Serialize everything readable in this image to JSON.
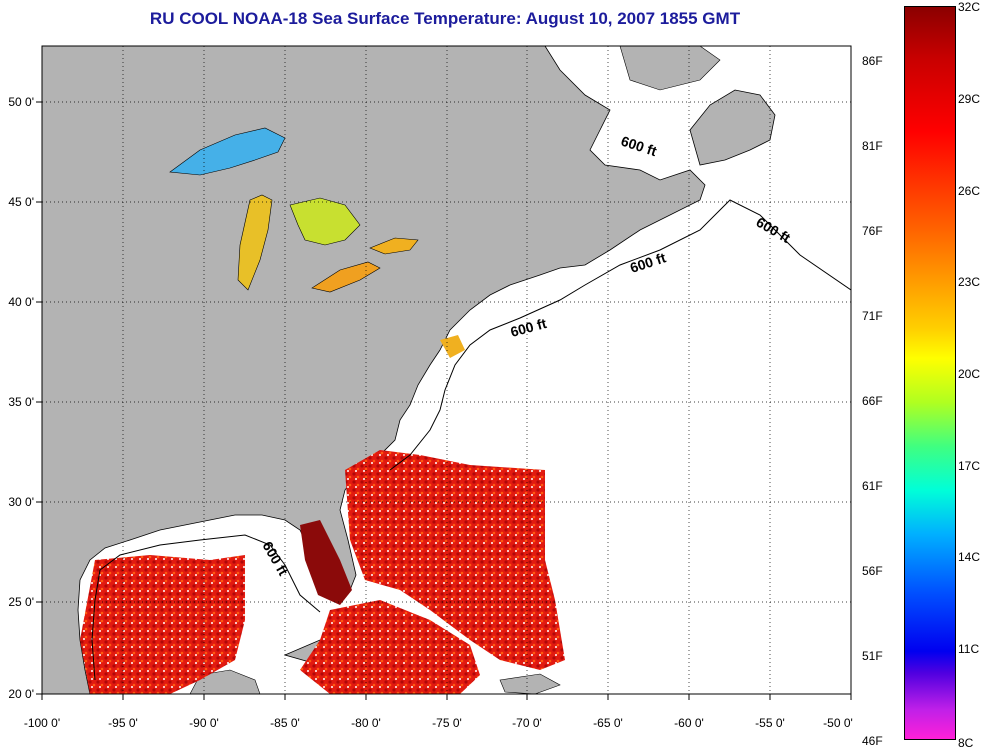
{
  "title": "RU COOL  NOAA-18  Sea Surface Temperature:  August 10, 2007 1855 GMT",
  "map": {
    "lon_range": [
      -100,
      -50
    ],
    "lat_range": [
      20,
      52.5
    ],
    "x_ticks": [
      "-100 0'",
      "-95 0'",
      "-90 0'",
      "-85 0'",
      "-80 0'",
      "-75 0'",
      "-70 0'",
      "-65 0'",
      "-60 0'",
      "-55 0'",
      "-50 0'"
    ],
    "y_ticks": [
      "50 0'",
      "45 0'",
      "40 0'",
      "35 0'",
      "30 0'",
      "25 0'",
      "20 0'"
    ],
    "contour_labels": [
      "600 ft",
      "600 ft",
      "600 ft",
      "600 ft",
      "600 ft"
    ],
    "colors": {
      "land": "#b3b3b3",
      "cloud": "#ffffff",
      "warm": "#e01010",
      "hot": "#8b0000"
    }
  },
  "colorbar": {
    "celsius": [
      "32C",
      "29C",
      "26C",
      "23C",
      "20C",
      "17C",
      "14C",
      "11C",
      "8C"
    ],
    "fahrenheit": [
      "86F",
      "81F",
      "76F",
      "71F",
      "66F",
      "61F",
      "56F",
      "51F",
      "46F"
    ]
  }
}
